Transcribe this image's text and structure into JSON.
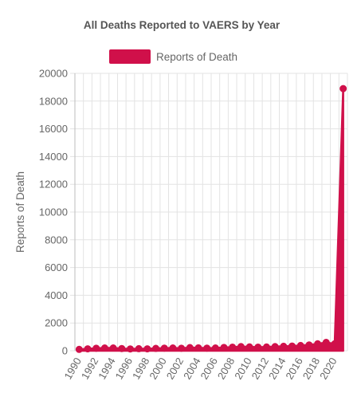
{
  "chart_data": {
    "type": "area",
    "title": "All Deaths Reported to VAERS by Year",
    "ylabel": "Reports of Death",
    "xlabel": "",
    "ylim": [
      0,
      20000
    ],
    "yticks": [
      0,
      2000,
      4000,
      6000,
      8000,
      10000,
      12000,
      14000,
      16000,
      18000,
      20000
    ],
    "categories": [
      "1990",
      "1991",
      "1992",
      "1993",
      "1994",
      "1995",
      "1996",
      "1997",
      "1998",
      "1999",
      "2000",
      "2001",
      "2002",
      "2003",
      "2004",
      "2005",
      "2006",
      "2007",
      "2008",
      "2009",
      "2010",
      "2011",
      "2012",
      "2013",
      "2014",
      "2015",
      "2016",
      "2017",
      "2018",
      "2019",
      "2020",
      "2021"
    ],
    "xtick_labels": [
      "1990",
      "1992",
      "1994",
      "1996",
      "1998",
      "2000",
      "2002",
      "2004",
      "2006",
      "2008",
      "2010",
      "2012",
      "2014",
      "2016",
      "2018",
      "2020"
    ],
    "series": [
      {
        "name": "Reports of Death",
        "color": "#d0104a",
        "values": [
          100,
          140,
          180,
          200,
          200,
          160,
          130,
          150,
          140,
          170,
          190,
          200,
          180,
          230,
          210,
          190,
          200,
          240,
          260,
          300,
          280,
          260,
          270,
          300,
          320,
          340,
          380,
          420,
          500,
          600,
          500,
          18900
        ]
      }
    ],
    "legend": "top",
    "grid": true
  }
}
